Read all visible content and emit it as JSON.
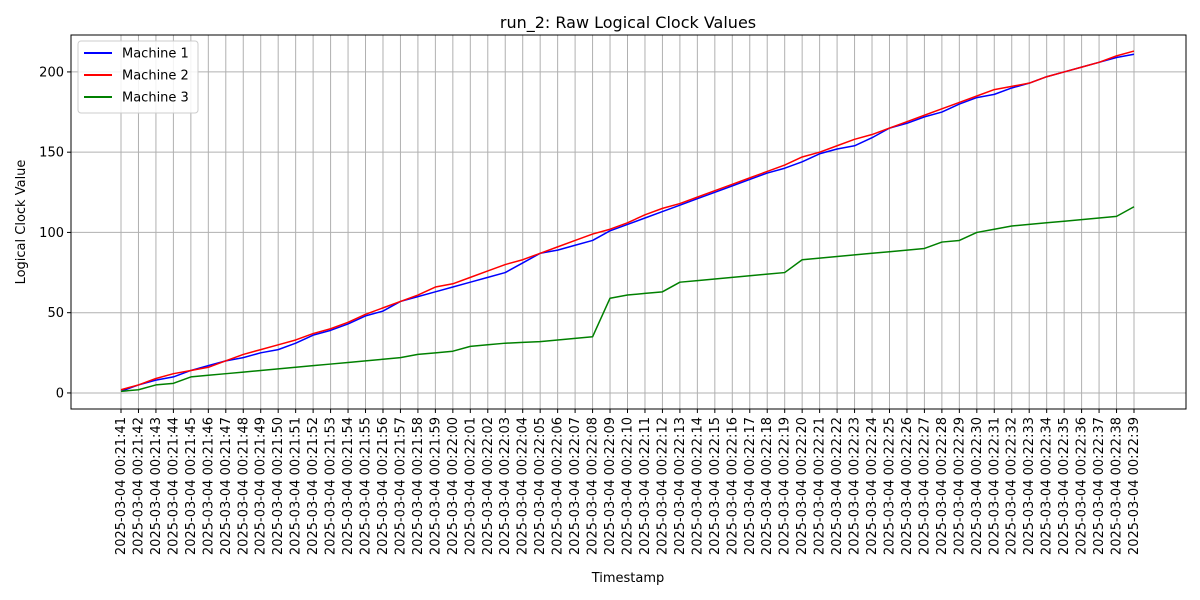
{
  "chart_data": {
    "type": "line",
    "title": "run_2: Raw Logical Clock Values",
    "xlabel": "Timestamp",
    "ylabel": "Logical Clock Value",
    "ylim": [
      -10,
      223
    ],
    "yticks": [
      0,
      50,
      100,
      150,
      200
    ],
    "grid": true,
    "legend_position": "top-left",
    "categories": [
      "2025-03-04 00:21:41",
      "2025-03-04 00:21:42",
      "2025-03-04 00:21:43",
      "2025-03-04 00:21:44",
      "2025-03-04 00:21:45",
      "2025-03-04 00:21:46",
      "2025-03-04 00:21:47",
      "2025-03-04 00:21:48",
      "2025-03-04 00:21:49",
      "2025-03-04 00:21:50",
      "2025-03-04 00:21:51",
      "2025-03-04 00:21:52",
      "2025-03-04 00:21:53",
      "2025-03-04 00:21:54",
      "2025-03-04 00:21:55",
      "2025-03-04 00:21:56",
      "2025-03-04 00:21:57",
      "2025-03-04 00:21:58",
      "2025-03-04 00:21:59",
      "2025-03-04 00:22:00",
      "2025-03-04 00:22:01",
      "2025-03-04 00:22:02",
      "2025-03-04 00:22:03",
      "2025-03-04 00:22:04",
      "2025-03-04 00:22:05",
      "2025-03-04 00:22:06",
      "2025-03-04 00:22:07",
      "2025-03-04 00:22:08",
      "2025-03-04 00:22:09",
      "2025-03-04 00:22:10",
      "2025-03-04 00:22:11",
      "2025-03-04 00:22:12",
      "2025-03-04 00:22:13",
      "2025-03-04 00:22:14",
      "2025-03-04 00:22:15",
      "2025-03-04 00:22:16",
      "2025-03-04 00:22:17",
      "2025-03-04 00:22:18",
      "2025-03-04 00:22:19",
      "2025-03-04 00:22:20",
      "2025-03-04 00:22:21",
      "2025-03-04 00:22:22",
      "2025-03-04 00:22:23",
      "2025-03-04 00:22:24",
      "2025-03-04 00:22:25",
      "2025-03-04 00:22:26",
      "2025-03-04 00:22:27",
      "2025-03-04 00:22:28",
      "2025-03-04 00:22:29",
      "2025-03-04 00:22:30",
      "2025-03-04 00:22:31",
      "2025-03-04 00:22:32",
      "2025-03-04 00:22:33",
      "2025-03-04 00:22:34",
      "2025-03-04 00:22:35",
      "2025-03-04 00:22:36",
      "2025-03-04 00:22:37",
      "2025-03-04 00:22:38",
      "2025-03-04 00:22:39"
    ],
    "series": [
      {
        "name": "Machine 1",
        "color": "#0000ff",
        "values": [
          1,
          5,
          8,
          10,
          14,
          17,
          20,
          22,
          25,
          27,
          31,
          36,
          39,
          43,
          48,
          51,
          57,
          60,
          63,
          66,
          69,
          72,
          75,
          81,
          87,
          89,
          92,
          95,
          101,
          105,
          109,
          113,
          117,
          121,
          125,
          129,
          133,
          137,
          140,
          144,
          149,
          152,
          154,
          159,
          165,
          168,
          172,
          175,
          180,
          184,
          186,
          190,
          193,
          197,
          200,
          203,
          206,
          209,
          211
        ]
      },
      {
        "name": "Machine 2",
        "color": "#ff0000",
        "values": [
          2,
          5,
          9,
          12,
          14,
          16,
          20,
          24,
          27,
          30,
          33,
          37,
          40,
          44,
          49,
          53,
          57,
          61,
          66,
          68,
          72,
          76,
          80,
          83,
          87,
          91,
          95,
          99,
          102,
          106,
          111,
          115,
          118,
          122,
          126,
          130,
          134,
          138,
          142,
          147,
          150,
          154,
          158,
          161,
          165,
          169,
          173,
          177,
          181,
          185,
          189,
          191,
          193,
          197,
          200,
          203,
          206,
          210,
          213
        ]
      },
      {
        "name": "Machine 3",
        "color": "#008000",
        "values": [
          1,
          2,
          5,
          6,
          10,
          11,
          12,
          13,
          14,
          15,
          16,
          17,
          18,
          19,
          20,
          21,
          22,
          24,
          25,
          26,
          29,
          30,
          31,
          31.5,
          32,
          33,
          34,
          35,
          59,
          61,
          62,
          63,
          69,
          70,
          71,
          72,
          73,
          74,
          75,
          83,
          84,
          85,
          86,
          87,
          88,
          89,
          90,
          94,
          95,
          100,
          102,
          104,
          105,
          106,
          107,
          108,
          109,
          110,
          116
        ]
      }
    ]
  }
}
